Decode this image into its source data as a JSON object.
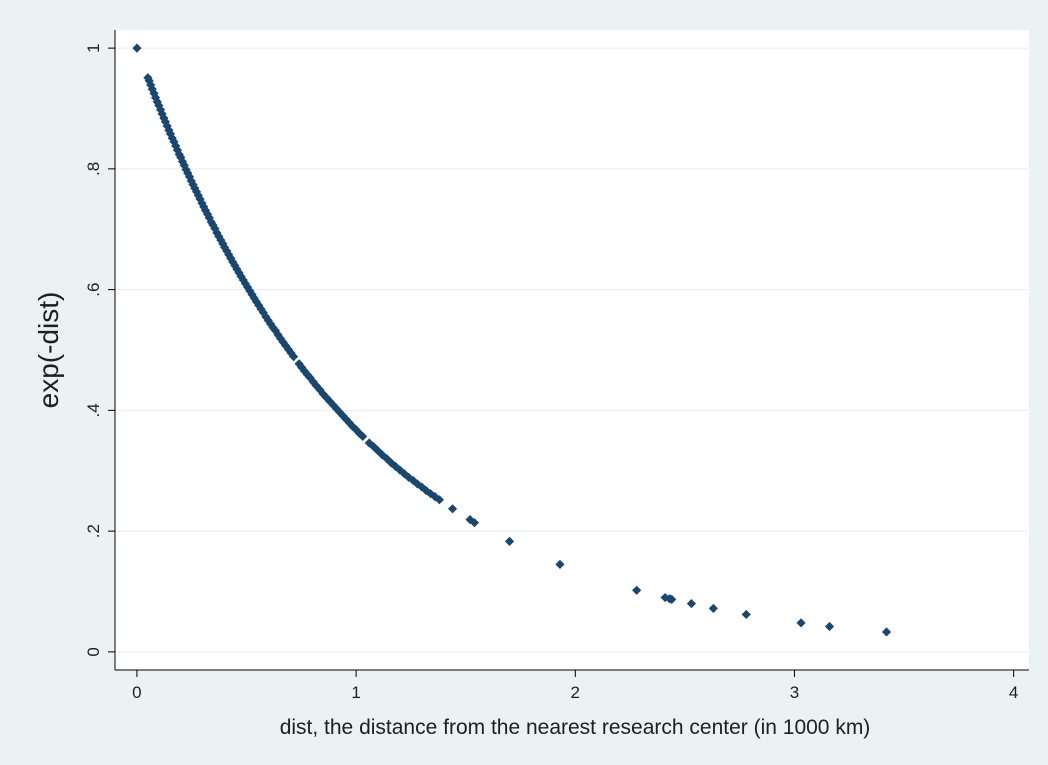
{
  "colors": {
    "graph_region": "#eaf2f3",
    "plot_region": "#ffffff",
    "gridline": "#e6ecef",
    "axis_line": "#000000",
    "marker": "#1a476f",
    "text": "#1f1f1f"
  },
  "chart_data": {
    "type": "scatter",
    "title": "",
    "xlabel": "dist, the distance from the nearest research center (in 1000 km)",
    "ylabel": "exp(-dist)",
    "xlim": [
      -0.1,
      4.07
    ],
    "ylim": [
      -0.03,
      1.03
    ],
    "xticks": [
      0,
      1,
      2,
      3,
      4
    ],
    "xtick_labels": [
      "0",
      "1",
      "2",
      "3",
      "4"
    ],
    "yticks": [
      0,
      0.2,
      0.4,
      0.6,
      0.8,
      1
    ],
    "ytick_labels": [
      "0",
      ".2",
      ".4",
      ".6",
      ".8",
      "1"
    ],
    "grid": "horizontal",
    "legend": "none",
    "marker": "diamond",
    "points": [
      [
        0.0,
        1.0
      ],
      [
        0.05,
        0.951
      ],
      [
        0.056,
        0.946
      ],
      [
        0.063,
        0.939
      ],
      [
        0.07,
        0.932
      ],
      [
        0.078,
        0.925
      ],
      [
        0.085,
        0.918
      ],
      [
        0.093,
        0.911
      ],
      [
        0.1,
        0.905
      ],
      [
        0.108,
        0.898
      ],
      [
        0.115,
        0.891
      ],
      [
        0.123,
        0.884
      ],
      [
        0.13,
        0.878
      ],
      [
        0.138,
        0.871
      ],
      [
        0.146,
        0.864
      ],
      [
        0.153,
        0.858
      ],
      [
        0.161,
        0.851
      ],
      [
        0.169,
        0.845
      ],
      [
        0.177,
        0.838
      ],
      [
        0.185,
        0.831
      ],
      [
        0.193,
        0.824
      ],
      [
        0.2,
        0.819
      ],
      [
        0.208,
        0.812
      ],
      [
        0.216,
        0.806
      ],
      [
        0.224,
        0.799
      ],
      [
        0.232,
        0.793
      ],
      [
        0.24,
        0.787
      ],
      [
        0.248,
        0.78
      ],
      [
        0.256,
        0.774
      ],
      [
        0.264,
        0.768
      ],
      [
        0.272,
        0.762
      ],
      [
        0.28,
        0.756
      ],
      [
        0.288,
        0.75
      ],
      [
        0.297,
        0.743
      ],
      [
        0.305,
        0.737
      ],
      [
        0.313,
        0.731
      ],
      [
        0.322,
        0.725
      ],
      [
        0.33,
        0.719
      ],
      [
        0.339,
        0.712
      ],
      [
        0.347,
        0.707
      ],
      [
        0.356,
        0.701
      ],
      [
        0.365,
        0.694
      ],
      [
        0.374,
        0.688
      ],
      [
        0.383,
        0.682
      ],
      [
        0.392,
        0.676
      ],
      [
        0.4,
        0.67
      ],
      [
        0.41,
        0.664
      ],
      [
        0.419,
        0.658
      ],
      [
        0.428,
        0.652
      ],
      [
        0.437,
        0.646
      ],
      [
        0.447,
        0.64
      ],
      [
        0.456,
        0.634
      ],
      [
        0.466,
        0.628
      ],
      [
        0.475,
        0.622
      ],
      [
        0.485,
        0.616
      ],
      [
        0.495,
        0.61
      ],
      [
        0.505,
        0.604
      ],
      [
        0.515,
        0.598
      ],
      [
        0.525,
        0.592
      ],
      [
        0.535,
        0.586
      ],
      [
        0.545,
        0.58
      ],
      [
        0.556,
        0.574
      ],
      [
        0.566,
        0.568
      ],
      [
        0.577,
        0.562
      ],
      [
        0.588,
        0.555
      ],
      [
        0.599,
        0.549
      ],
      [
        0.61,
        0.543
      ],
      [
        0.621,
        0.537
      ],
      [
        0.632,
        0.532
      ],
      [
        0.644,
        0.525
      ],
      [
        0.655,
        0.519
      ],
      [
        0.667,
        0.513
      ],
      [
        0.679,
        0.507
      ],
      [
        0.691,
        0.501
      ],
      [
        0.703,
        0.495
      ],
      [
        0.715,
        0.489
      ],
      [
        0.74,
        0.477
      ],
      [
        0.752,
        0.471
      ],
      [
        0.765,
        0.465
      ],
      [
        0.778,
        0.459
      ],
      [
        0.79,
        0.454
      ],
      [
        0.805,
        0.447
      ],
      [
        0.818,
        0.441
      ],
      [
        0.835,
        0.434
      ],
      [
        0.85,
        0.427
      ],
      [
        0.865,
        0.421
      ],
      [
        0.88,
        0.415
      ],
      [
        0.895,
        0.409
      ],
      [
        0.91,
        0.403
      ],
      [
        0.925,
        0.397
      ],
      [
        0.94,
        0.391
      ],
      [
        0.955,
        0.385
      ],
      [
        0.97,
        0.379
      ],
      [
        0.985,
        0.373
      ],
      [
        1.0,
        0.368
      ],
      [
        1.015,
        0.362
      ],
      [
        1.03,
        0.357
      ],
      [
        1.06,
        0.346
      ],
      [
        1.08,
        0.34
      ],
      [
        1.1,
        0.333
      ],
      [
        1.12,
        0.326
      ],
      [
        1.14,
        0.32
      ],
      [
        1.16,
        0.313
      ],
      [
        1.18,
        0.307
      ],
      [
        1.2,
        0.301
      ],
      [
        1.22,
        0.295
      ],
      [
        1.24,
        0.289
      ],
      [
        1.26,
        0.284
      ],
      [
        1.28,
        0.278
      ],
      [
        1.3,
        0.273
      ],
      [
        1.32,
        0.267
      ],
      [
        1.34,
        0.262
      ],
      [
        1.36,
        0.257
      ],
      [
        1.38,
        0.252
      ],
      [
        1.44,
        0.237
      ],
      [
        1.52,
        0.219
      ],
      [
        1.54,
        0.214
      ],
      [
        1.7,
        0.183
      ],
      [
        1.93,
        0.145
      ],
      [
        2.28,
        0.102
      ],
      [
        2.41,
        0.09
      ],
      [
        2.43,
        0.088
      ],
      [
        2.44,
        0.087
      ],
      [
        2.53,
        0.08
      ],
      [
        2.63,
        0.072
      ],
      [
        2.78,
        0.062
      ],
      [
        3.03,
        0.048
      ],
      [
        3.16,
        0.042
      ],
      [
        3.42,
        0.033
      ]
    ]
  }
}
